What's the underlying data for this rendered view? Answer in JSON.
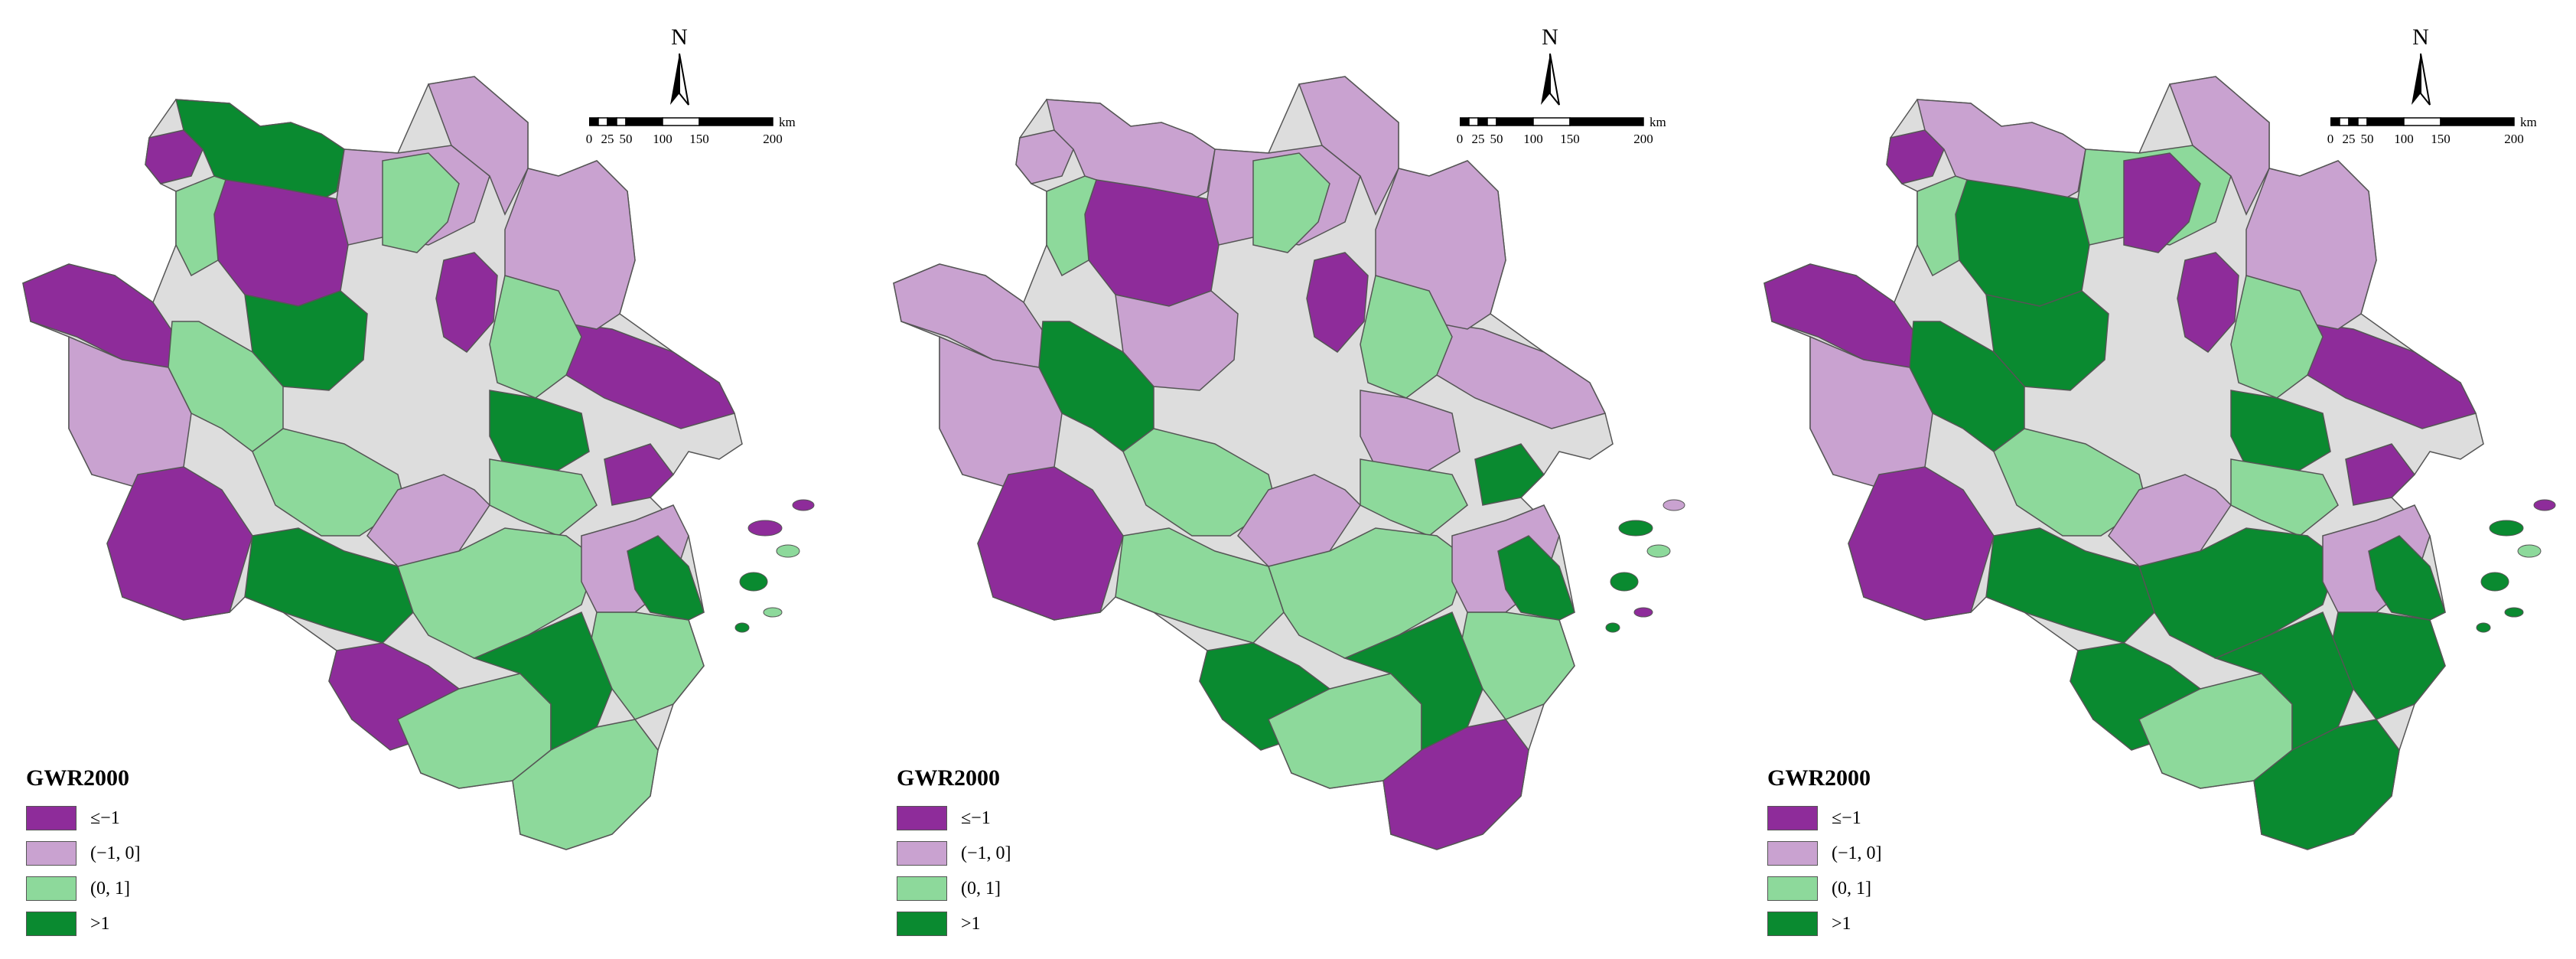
{
  "colors": {
    "le_neg1": "#8e2c9a",
    "neg1_0": "#c9a2d0",
    "0_1": "#8dd99b",
    "gt1": "#0a8a30",
    "border": "#555555"
  },
  "north_label": "N",
  "scale": {
    "ticks": [
      "0",
      "25",
      "50",
      "100",
      "150",
      "200"
    ],
    "unit": "km"
  },
  "legend": {
    "title": "GWR2000",
    "items": [
      {
        "key": "le_neg1",
        "label": "≤−1"
      },
      {
        "key": "neg1_0",
        "label": "(−1, 0]"
      },
      {
        "key": "0_1",
        "label": "(0, 1]"
      },
      {
        "key": "gt1",
        "label": ">1"
      }
    ]
  },
  "panels": [
    {
      "id": "map-1",
      "regions": [
        "le_neg1",
        "gt1",
        "le_neg1",
        "neg1_0",
        "le_neg1",
        "0_1",
        "gt1",
        "le_neg1",
        "neg1_0",
        "0_1",
        "le_neg1",
        "gt1",
        "neg1_0",
        "0_1",
        "0_1",
        "neg1_0",
        "le_neg1",
        "0_1",
        "gt1",
        "neg1_0",
        "0_1",
        "le_neg1",
        "0_1",
        "neg1_0",
        "0_1",
        "le_neg1",
        "0_1",
        "gt1",
        "0_1",
        "gt1"
      ]
    },
    {
      "id": "map-2",
      "regions": [
        "neg1_0",
        "neg1_0",
        "le_neg1",
        "neg1_0",
        "neg1_0",
        "0_1",
        "neg1_0",
        "le_neg1",
        "neg1_0",
        "0_1",
        "neg1_0",
        "neg1_0",
        "neg1_0",
        "0_1",
        "gt1",
        "neg1_0",
        "le_neg1",
        "0_1",
        "0_1",
        "neg1_0",
        "0_1",
        "gt1",
        "0_1",
        "neg1_0",
        "0_1",
        "gt1",
        "0_1",
        "gt1",
        "le_neg1",
        "gt1"
      ]
    },
    {
      "id": "map-3",
      "regions": [
        "le_neg1",
        "neg1_0",
        "gt1",
        "0_1",
        "le_neg1",
        "0_1",
        "gt1",
        "le_neg1",
        "neg1_0",
        "le_neg1",
        "le_neg1",
        "gt1",
        "neg1_0",
        "0_1",
        "gt1",
        "neg1_0",
        "le_neg1",
        "0_1",
        "gt1",
        "neg1_0",
        "0_1",
        "le_neg1",
        "gt1",
        "neg1_0",
        "gt1",
        "gt1",
        "0_1",
        "gt1",
        "gt1",
        "gt1"
      ]
    }
  ]
}
